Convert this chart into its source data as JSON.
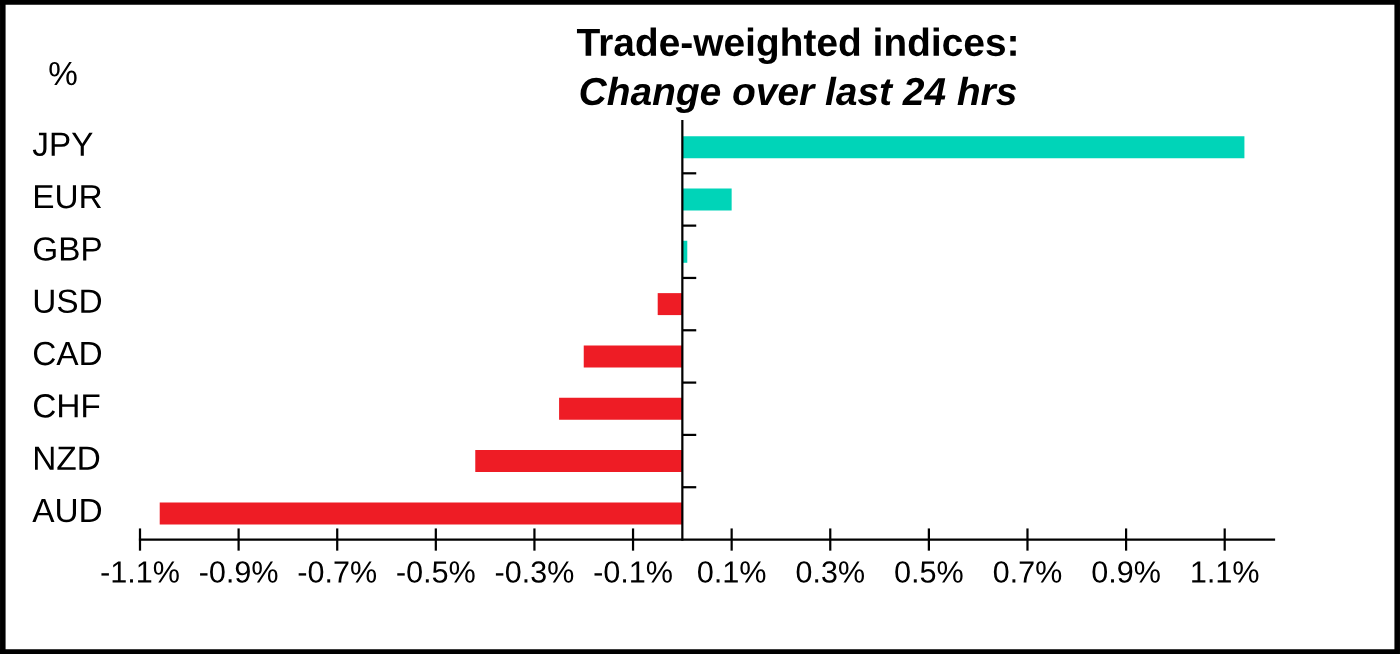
{
  "chart_data": {
    "type": "bar",
    "orientation": "horizontal",
    "title": "Trade-weighted indices:",
    "subtitle": "Change over last 24 hrs",
    "ylabel": "%",
    "categories": [
      "JPY",
      "EUR",
      "GBP",
      "USD",
      "CAD",
      "CHF",
      "NZD",
      "AUD"
    ],
    "values": [
      1.14,
      0.1,
      0.01,
      -0.05,
      -0.2,
      -0.25,
      -0.42,
      -1.06
    ],
    "colors": [
      "#00d4b8",
      "#00d4b8",
      "#00d4b8",
      "#ee1c25",
      "#ee1c25",
      "#ee1c25",
      "#ee1c25",
      "#ee1c25"
    ],
    "xlim": [
      -1.1,
      1.2
    ],
    "xticks": [
      {
        "value": -1.1,
        "label": "-1.1%"
      },
      {
        "value": -0.9,
        "label": "-0.9%"
      },
      {
        "value": -0.7,
        "label": "-0.7%"
      },
      {
        "value": -0.5,
        "label": "-0.5%"
      },
      {
        "value": -0.3,
        "label": "-0.3%"
      },
      {
        "value": -0.1,
        "label": "-0.1%"
      },
      {
        "value": 0.1,
        "label": "0.1%"
      },
      {
        "value": 0.3,
        "label": "0.3%"
      },
      {
        "value": 0.5,
        "label": "0.5%"
      },
      {
        "value": 0.7,
        "label": "0.7%"
      },
      {
        "value": 0.9,
        "label": "0.9%"
      },
      {
        "value": 1.1,
        "label": "1.1%"
      }
    ],
    "grid": false,
    "legend": false
  }
}
